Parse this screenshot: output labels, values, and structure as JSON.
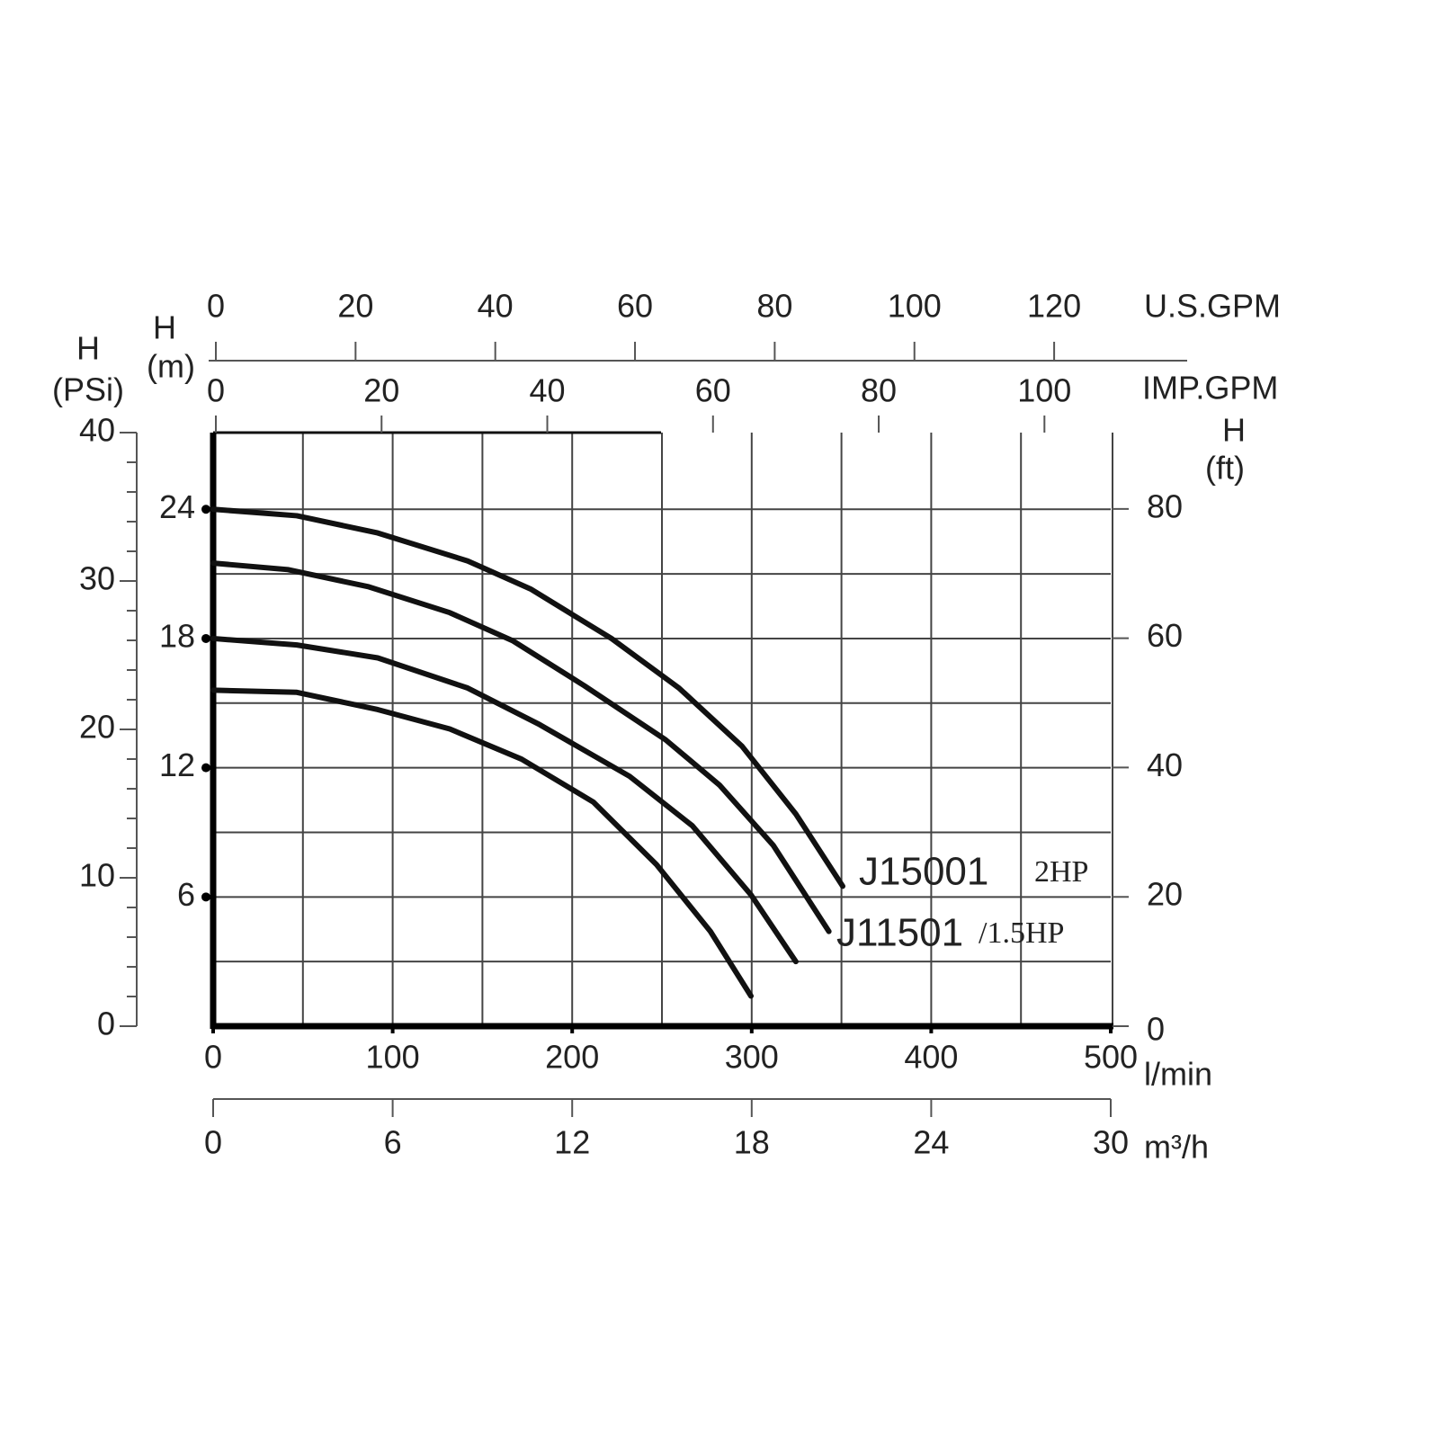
{
  "chart_data": {
    "type": "line",
    "xlim": [
      0,
      500
    ],
    "xticks": [
      0,
      100,
      200,
      300,
      400,
      500
    ],
    "x_label": "l/min",
    "ylim": [
      0,
      27.56
    ],
    "yticks": [
      6,
      12,
      18,
      24
    ],
    "y_label": "H",
    "y_unit": "(m)",
    "xgrid": [
      50,
      100,
      150,
      200,
      250,
      300,
      350,
      400,
      450
    ],
    "ygrid": [
      3,
      6,
      9,
      12,
      15,
      18,
      21,
      24
    ],
    "series": [
      {
        "color": "#111111",
        "x": [
          0,
          46.6,
          91.7,
          141.8,
          176.8,
          221.9,
          259.5,
          294.6,
          324.6,
          350.7
        ],
        "values": [
          24.0,
          23.7,
          22.9,
          21.6,
          20.3,
          18.0,
          15.7,
          13.0,
          9.85,
          6.5
        ]
      },
      {
        "color": "#111111",
        "x": [
          0,
          41.6,
          86.7,
          131.8,
          166.8,
          206.9,
          252,
          282,
          312,
          343
        ],
        "values": [
          21.5,
          21.2,
          20.4,
          19.2,
          17.9,
          15.8,
          13.3,
          11.2,
          8.4,
          4.4
        ]
      },
      {
        "color": "#111111",
        "x": [
          0,
          46.6,
          91.7,
          141.8,
          181.9,
          232,
          267,
          299.6,
          324.6
        ],
        "values": [
          18.0,
          17.7,
          17.1,
          15.7,
          14.0,
          11.6,
          9.3,
          6.1,
          3.0
        ]
      },
      {
        "color": "#111111",
        "x": [
          0,
          46.6,
          91.7,
          131.8,
          171.8,
          211.9,
          247,
          277,
          299.6
        ],
        "values": [
          15.6,
          15.5,
          14.7,
          13.8,
          12.4,
          10.4,
          7.5,
          4.4,
          1.4
        ]
      }
    ],
    "annotations": [
      "J15001",
      "2HP",
      "J11501",
      "/1.5HP"
    ],
    "extra_axes": [
      {
        "side": "left",
        "label": "H",
        "unit": "(PSi)",
        "lim": [
          0,
          40
        ],
        "ticks": [
          0,
          10,
          20,
          30,
          40
        ],
        "minor_ticks": [
          2,
          4,
          6,
          8,
          12,
          14,
          16,
          18,
          22,
          24,
          26,
          28,
          32,
          34,
          36,
          38
        ]
      },
      {
        "side": "right",
        "label": "H",
        "unit": "(ft)",
        "lim": [
          0,
          91.8
        ],
        "ticks": [
          0,
          20,
          40,
          60,
          80
        ]
      },
      {
        "side": "top1",
        "label": "U.S.GPM",
        "lim": [
          0,
          128.1
        ],
        "ticks": [
          0,
          20,
          40,
          60,
          80,
          100,
          120
        ]
      },
      {
        "side": "top2",
        "label": "IMP.GPM",
        "lim": [
          0,
          108
        ],
        "ticks": [
          0,
          20,
          40,
          60,
          80,
          100
        ]
      },
      {
        "side": "bottom2",
        "label": "m³/h",
        "lim": [
          0,
          30
        ],
        "ticks": [
          0,
          6,
          12,
          18,
          24,
          30
        ]
      }
    ]
  }
}
